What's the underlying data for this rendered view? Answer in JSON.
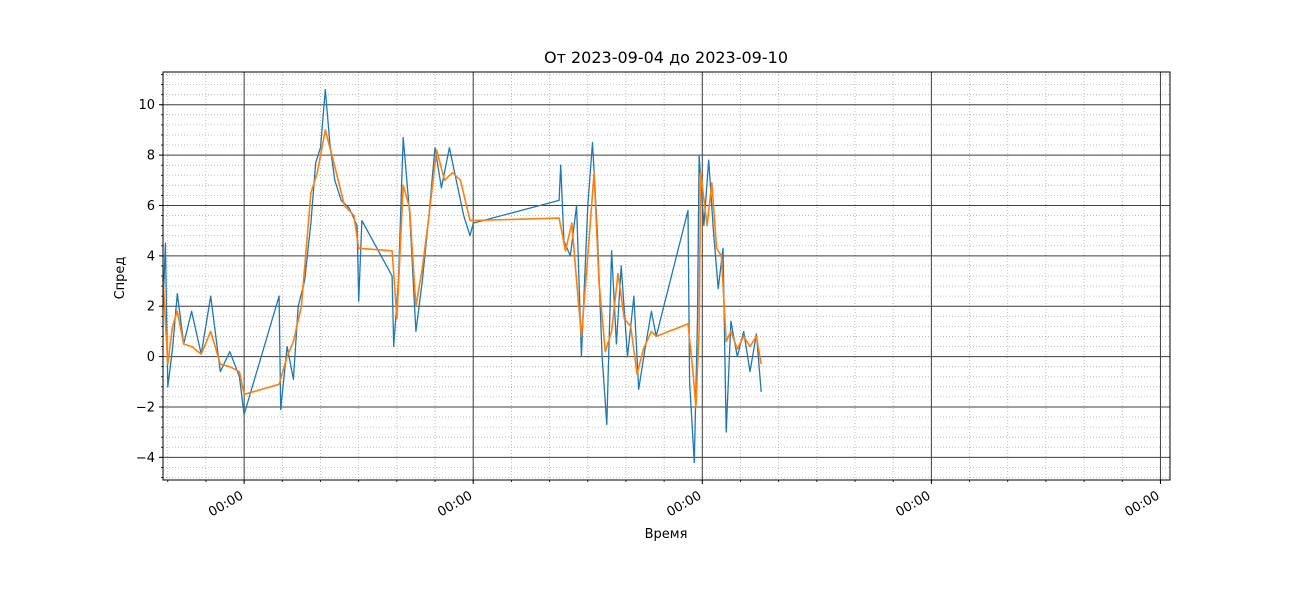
{
  "chart_data": {
    "type": "line",
    "title": "От 2023-09-04 до 2023-09-10",
    "xlabel": "Время",
    "ylabel": "Спред",
    "x_range": [
      "2023-09-04T15:30",
      "2023-09-09T01:00"
    ],
    "ylim": [
      -4.9,
      11.3
    ],
    "y_ticks": [
      -4,
      -2,
      0,
      2,
      4,
      6,
      8,
      10
    ],
    "x_ticks": [
      {
        "t": "2023-09-05T00:00",
        "label": "00:00"
      },
      {
        "t": "2023-09-06T00:00",
        "label": "00:00"
      },
      {
        "t": "2023-09-07T00:00",
        "label": "00:00"
      },
      {
        "t": "2023-09-08T00:00",
        "label": "00:00"
      },
      {
        "t": "2023-09-09T00:00",
        "label": "00:00"
      }
    ],
    "grid": {
      "major": true,
      "minor": true
    },
    "series": [
      {
        "color": "#1f77b4",
        "points": [
          [
            "2023-09-04T15:30",
            2.0
          ],
          [
            "2023-09-04T15:45",
            4.5
          ],
          [
            "2023-09-04T16:00",
            -1.2
          ],
          [
            "2023-09-04T16:30",
            0.3
          ],
          [
            "2023-09-04T17:00",
            2.5
          ],
          [
            "2023-09-04T17:40",
            0.5
          ],
          [
            "2023-09-04T18:30",
            1.8
          ],
          [
            "2023-09-04T19:30",
            0.1
          ],
          [
            "2023-09-04T20:30",
            2.4
          ],
          [
            "2023-09-04T21:30",
            -0.6
          ],
          [
            "2023-09-04T22:30",
            0.2
          ],
          [
            "2023-09-04T23:30",
            -0.8
          ],
          [
            "2023-09-05T00:00",
            -2.3
          ],
          [
            "2023-09-05T03:40",
            2.4
          ],
          [
            "2023-09-05T03:50",
            -2.1
          ],
          [
            "2023-09-05T04:30",
            0.4
          ],
          [
            "2023-09-05T05:10",
            -0.9
          ],
          [
            "2023-09-05T05:40",
            2.0
          ],
          [
            "2023-09-05T06:20",
            3.0
          ],
          [
            "2023-09-05T07:00",
            5.3
          ],
          [
            "2023-09-05T07:30",
            7.7
          ],
          [
            "2023-09-05T08:00",
            8.3
          ],
          [
            "2023-09-05T08:30",
            10.6
          ],
          [
            "2023-09-05T09:00",
            8.4
          ],
          [
            "2023-09-05T09:30",
            7.0
          ],
          [
            "2023-09-05T10:10",
            6.2
          ],
          [
            "2023-09-05T11:00",
            5.9
          ],
          [
            "2023-09-05T11:50",
            5.2
          ],
          [
            "2023-09-05T12:00",
            2.2
          ],
          [
            "2023-09-05T12:20",
            5.4
          ],
          [
            "2023-09-05T15:30",
            3.2
          ],
          [
            "2023-09-05T15:40",
            0.4
          ],
          [
            "2023-09-05T16:10",
            3.0
          ],
          [
            "2023-09-05T16:40",
            8.7
          ],
          [
            "2023-09-05T17:20",
            5.7
          ],
          [
            "2023-09-05T18:00",
            1.0
          ],
          [
            "2023-09-05T18:40",
            3.0
          ],
          [
            "2023-09-05T19:20",
            5.5
          ],
          [
            "2023-09-05T20:00",
            8.3
          ],
          [
            "2023-09-05T20:40",
            6.7
          ],
          [
            "2023-09-05T21:30",
            8.3
          ],
          [
            "2023-09-05T22:20",
            6.8
          ],
          [
            "2023-09-05T23:00",
            5.6
          ],
          [
            "2023-09-05T23:40",
            4.8
          ],
          [
            "2023-09-06T00:00",
            5.3
          ],
          [
            "2023-09-06T09:00",
            6.2
          ],
          [
            "2023-09-06T09:10",
            7.6
          ],
          [
            "2023-09-06T09:30",
            4.6
          ],
          [
            "2023-09-06T10:10",
            4.0
          ],
          [
            "2023-09-06T10:50",
            6.0
          ],
          [
            "2023-09-06T11:20",
            0.0
          ],
          [
            "2023-09-06T12:00",
            6.0
          ],
          [
            "2023-09-06T12:30",
            8.5
          ],
          [
            "2023-09-06T13:00",
            5.0
          ],
          [
            "2023-09-06T13:30",
            0.0
          ],
          [
            "2023-09-06T14:00",
            -2.7
          ],
          [
            "2023-09-06T14:30",
            4.2
          ],
          [
            "2023-09-06T15:00",
            0.5
          ],
          [
            "2023-09-06T15:30",
            3.6
          ],
          [
            "2023-09-06T16:10",
            0.0
          ],
          [
            "2023-09-06T16:50",
            2.4
          ],
          [
            "2023-09-06T17:20",
            -1.3
          ],
          [
            "2023-09-06T18:00",
            0.3
          ],
          [
            "2023-09-06T18:40",
            1.8
          ],
          [
            "2023-09-06T19:10",
            0.8
          ],
          [
            "2023-09-06T22:30",
            5.8
          ],
          [
            "2023-09-06T22:40",
            -1.0
          ],
          [
            "2023-09-06T23:10",
            -4.2
          ],
          [
            "2023-09-06T23:30",
            1.5
          ],
          [
            "2023-09-06T23:40",
            8.0
          ],
          [
            "2023-09-07T00:10",
            5.2
          ],
          [
            "2023-09-07T00:40",
            7.8
          ],
          [
            "2023-09-07T01:10",
            5.0
          ],
          [
            "2023-09-07T01:40",
            2.7
          ],
          [
            "2023-09-07T02:10",
            4.3
          ],
          [
            "2023-09-07T02:30",
            -3.0
          ],
          [
            "2023-09-07T03:00",
            1.4
          ],
          [
            "2023-09-07T03:40",
            0.0
          ],
          [
            "2023-09-07T04:20",
            1.0
          ],
          [
            "2023-09-07T05:00",
            -0.6
          ],
          [
            "2023-09-07T05:40",
            0.9
          ],
          [
            "2023-09-07T06:10",
            -1.4
          ]
        ]
      },
      {
        "color": "#ff7f0e",
        "points": [
          [
            "2023-09-04T15:30",
            3.1
          ],
          [
            "2023-09-04T16:00",
            -0.3
          ],
          [
            "2023-09-04T16:30",
            1.2
          ],
          [
            "2023-09-04T17:00",
            1.8
          ],
          [
            "2023-09-04T17:40",
            0.5
          ],
          [
            "2023-09-04T18:30",
            0.4
          ],
          [
            "2023-09-04T19:30",
            0.1
          ],
          [
            "2023-09-04T20:30",
            1.0
          ],
          [
            "2023-09-04T21:30",
            -0.3
          ],
          [
            "2023-09-04T22:30",
            -0.4
          ],
          [
            "2023-09-04T23:30",
            -0.6
          ],
          [
            "2023-09-05T00:00",
            -1.5
          ],
          [
            "2023-09-05T03:40",
            -1.1
          ],
          [
            "2023-09-05T04:30",
            0.0
          ],
          [
            "2023-09-05T05:10",
            0.6
          ],
          [
            "2023-09-05T06:00",
            2.0
          ],
          [
            "2023-09-05T07:00",
            6.5
          ],
          [
            "2023-09-05T07:40",
            7.3
          ],
          [
            "2023-09-05T08:30",
            9.0
          ],
          [
            "2023-09-05T09:20",
            7.8
          ],
          [
            "2023-09-05T10:30",
            6.0
          ],
          [
            "2023-09-05T11:30",
            5.6
          ],
          [
            "2023-09-05T12:00",
            4.3
          ],
          [
            "2023-09-05T15:30",
            4.2
          ],
          [
            "2023-09-05T16:00",
            1.5
          ],
          [
            "2023-09-05T16:40",
            6.8
          ],
          [
            "2023-09-05T17:20",
            5.9
          ],
          [
            "2023-09-05T18:00",
            2.0
          ],
          [
            "2023-09-05T18:40",
            3.5
          ],
          [
            "2023-09-05T19:20",
            5.5
          ],
          [
            "2023-09-05T20:10",
            8.2
          ],
          [
            "2023-09-05T21:00",
            7.0
          ],
          [
            "2023-09-05T21:50",
            7.3
          ],
          [
            "2023-09-05T22:40",
            7.0
          ],
          [
            "2023-09-05T23:40",
            5.4
          ],
          [
            "2023-09-06T09:00",
            5.5
          ],
          [
            "2023-09-06T09:40",
            4.2
          ],
          [
            "2023-09-06T10:20",
            5.3
          ],
          [
            "2023-09-06T10:50",
            3.0
          ],
          [
            "2023-09-06T11:20",
            0.8
          ],
          [
            "2023-09-06T12:00",
            4.0
          ],
          [
            "2023-09-06T12:40",
            7.3
          ],
          [
            "2023-09-06T13:10",
            3.0
          ],
          [
            "2023-09-06T13:50",
            0.2
          ],
          [
            "2023-09-06T14:30",
            1.0
          ],
          [
            "2023-09-06T15:10",
            3.3
          ],
          [
            "2023-09-06T15:50",
            1.5
          ],
          [
            "2023-09-06T16:30",
            1.2
          ],
          [
            "2023-09-06T17:10",
            -0.7
          ],
          [
            "2023-09-06T17:50",
            0.3
          ],
          [
            "2023-09-06T18:40",
            1.0
          ],
          [
            "2023-09-06T19:10",
            0.8
          ],
          [
            "2023-09-06T22:30",
            1.3
          ],
          [
            "2023-09-06T23:00",
            -0.5
          ],
          [
            "2023-09-06T23:20",
            -2.0
          ],
          [
            "2023-09-06T23:40",
            1.0
          ],
          [
            "2023-09-06T23:50",
            7.3
          ],
          [
            "2023-09-07T00:30",
            5.2
          ],
          [
            "2023-09-07T01:00",
            6.9
          ],
          [
            "2023-09-07T01:30",
            4.3
          ],
          [
            "2023-09-07T02:00",
            4.0
          ],
          [
            "2023-09-07T02:30",
            0.6
          ],
          [
            "2023-09-07T03:00",
            1.0
          ],
          [
            "2023-09-07T03:40",
            0.3
          ],
          [
            "2023-09-07T04:20",
            0.8
          ],
          [
            "2023-09-07T05:00",
            0.4
          ],
          [
            "2023-09-07T05:40",
            0.8
          ],
          [
            "2023-09-07T06:10",
            -0.3
          ]
        ]
      }
    ]
  }
}
